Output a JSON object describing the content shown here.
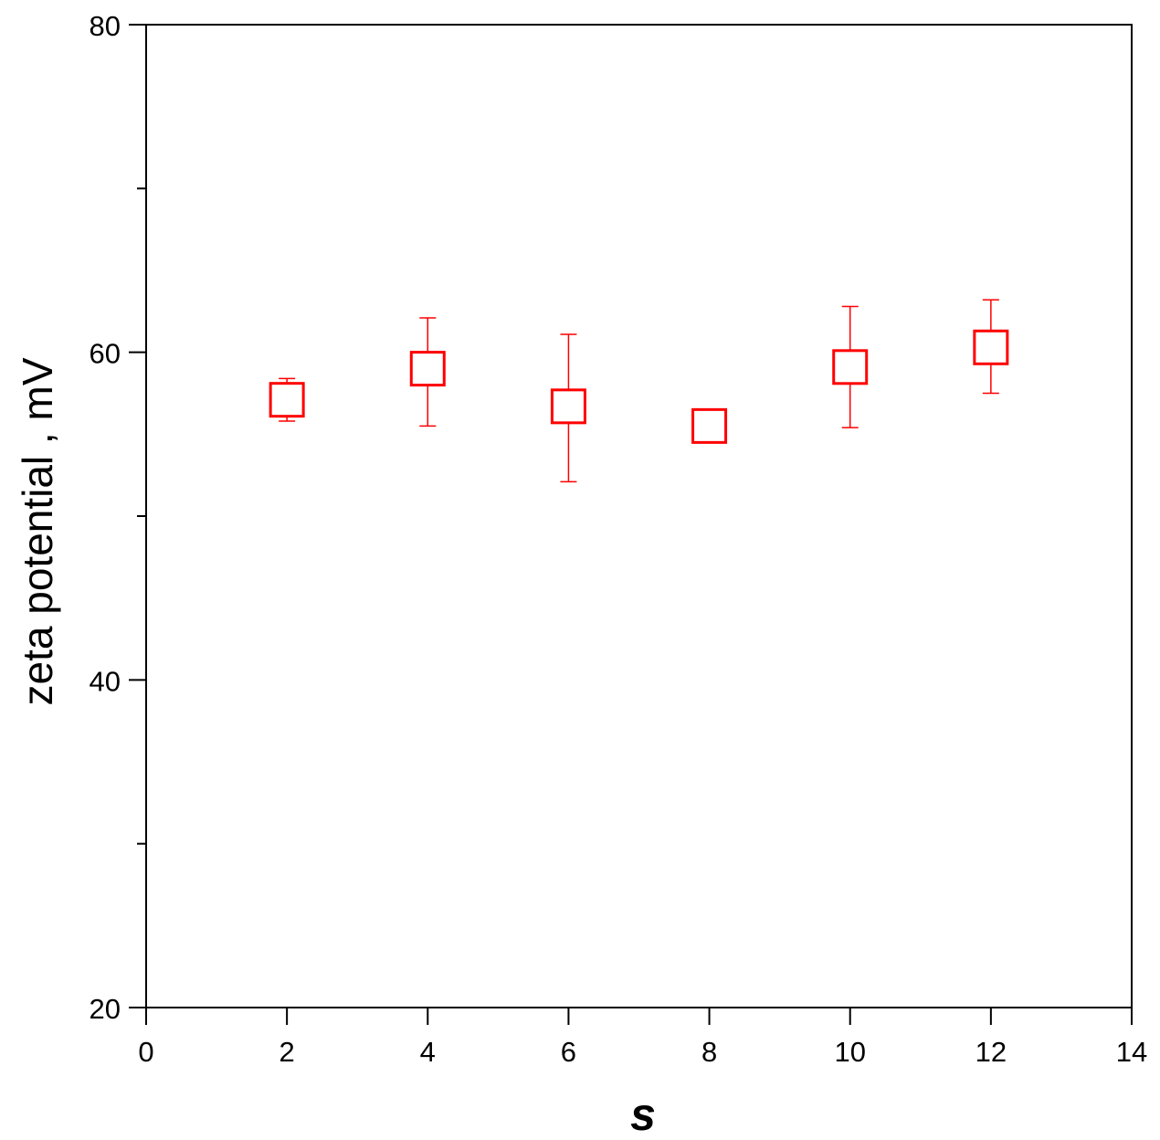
{
  "chart_data": {
    "type": "scatter",
    "xlabel": "s",
    "ylabel": "zeta potential , mV",
    "xlim": [
      0,
      14
    ],
    "ylim": [
      20,
      80
    ],
    "xticks": [
      0,
      2,
      4,
      6,
      8,
      10,
      12,
      14
    ],
    "xtick_labels": [
      "0",
      "2",
      "4",
      "6",
      "8",
      "10",
      "12",
      "14"
    ],
    "yticks": [
      20,
      40,
      60,
      80
    ],
    "ytick_labels": [
      "20",
      "40",
      "60",
      "80"
    ],
    "y_minor_ticks": [
      30,
      50,
      70
    ],
    "grid": false,
    "marker": "open-square",
    "color": "#ff0000",
    "series": [
      {
        "x": [
          2,
          4,
          6,
          8,
          10,
          12
        ],
        "y": [
          57.1,
          59.0,
          56.7,
          55.5,
          59.1,
          60.3
        ],
        "error_upper": [
          58.4,
          62.1,
          61.1,
          null,
          62.8,
          63.2
        ],
        "error_lower": [
          55.8,
          55.5,
          52.1,
          null,
          55.4,
          57.5
        ]
      }
    ]
  }
}
